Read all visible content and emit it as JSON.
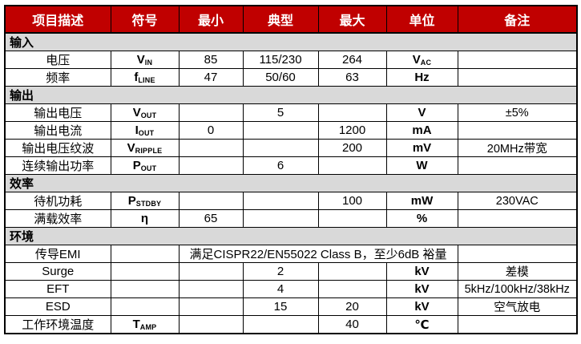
{
  "colors": {
    "header_bg": "#C00000",
    "header_text": "#FFFFFF",
    "section_bg": "#D9D9D9",
    "border": "#000000"
  },
  "table": {
    "columns": [
      "项目描述",
      "符号",
      "最小",
      "典型",
      "最大",
      "单位",
      "备注"
    ],
    "sections": [
      {
        "title": "输入",
        "rows": [
          {
            "item": "电压",
            "sym": "V",
            "sym_sub": "IN",
            "min": "85",
            "typ": "115/230",
            "max": "264",
            "unit": "V",
            "unit_sub": "AC",
            "note": ""
          },
          {
            "item": "频率",
            "sym": "f",
            "sym_sub": "LINE",
            "min": "47",
            "typ": "50/60",
            "max": "63",
            "unit": "Hz",
            "unit_sub": "",
            "note": ""
          }
        ]
      },
      {
        "title": "输出",
        "rows": [
          {
            "item": "输出电压",
            "sym": "V",
            "sym_sub": "OUT",
            "min": "",
            "typ": "5",
            "max": "",
            "unit": "V",
            "unit_sub": "",
            "note": "±5%"
          },
          {
            "item": "输出电流",
            "sym": "I",
            "sym_sub": "OUT",
            "min": "0",
            "typ": "",
            "max": "1200",
            "unit": "mA",
            "unit_sub": "",
            "note": ""
          },
          {
            "item": "输出电压纹波",
            "sym": "V",
            "sym_sub": "RIPPLE",
            "min": "",
            "typ": "",
            "max": "200",
            "unit": "mV",
            "unit_sub": "",
            "note": "20MHz带宽"
          },
          {
            "item": "连续输出功率",
            "sym": "P",
            "sym_sub": "OUT",
            "min": "",
            "typ": "6",
            "max": "",
            "unit": "W",
            "unit_sub": "",
            "note": ""
          }
        ]
      },
      {
        "title": "效率",
        "rows": [
          {
            "item": "待机功耗",
            "sym": "P",
            "sym_sub": "STDBY",
            "min": "",
            "typ": "",
            "max": "100",
            "unit": "mW",
            "unit_sub": "",
            "note": "230VAC"
          },
          {
            "item": "满载效率",
            "sym": "η",
            "sym_sub": "",
            "min": "65",
            "typ": "",
            "max": "",
            "unit": "%",
            "unit_sub": "",
            "note": ""
          }
        ]
      },
      {
        "title": "环境",
        "rows": [
          {
            "item": "传导EMI",
            "sym": "",
            "sym_sub": "",
            "merged": "满足CISPR22/EN55022 Class B，至少6dB 裕量",
            "note": ""
          },
          {
            "item": "Surge",
            "sym": "",
            "sym_sub": "",
            "min": "",
            "typ": "2",
            "max": "",
            "unit": "kV",
            "unit_sub": "",
            "note": "差模"
          },
          {
            "item": "EFT",
            "sym": "",
            "sym_sub": "",
            "min": "",
            "typ": "4",
            "max": "",
            "unit": "kV",
            "unit_sub": "",
            "note": "5kHz/100kHz/38kHz"
          },
          {
            "item": "ESD",
            "sym": "",
            "sym_sub": "",
            "min": "",
            "typ": "15",
            "max": "20",
            "unit": "kV",
            "unit_sub": "",
            "note": "空气放电"
          },
          {
            "item": "工作环境温度",
            "sym": "T",
            "sym_sub": "AMP",
            "min": "",
            "typ": "",
            "max": "40",
            "unit": "℃",
            "unit_sub": "",
            "note": ""
          }
        ]
      }
    ]
  }
}
